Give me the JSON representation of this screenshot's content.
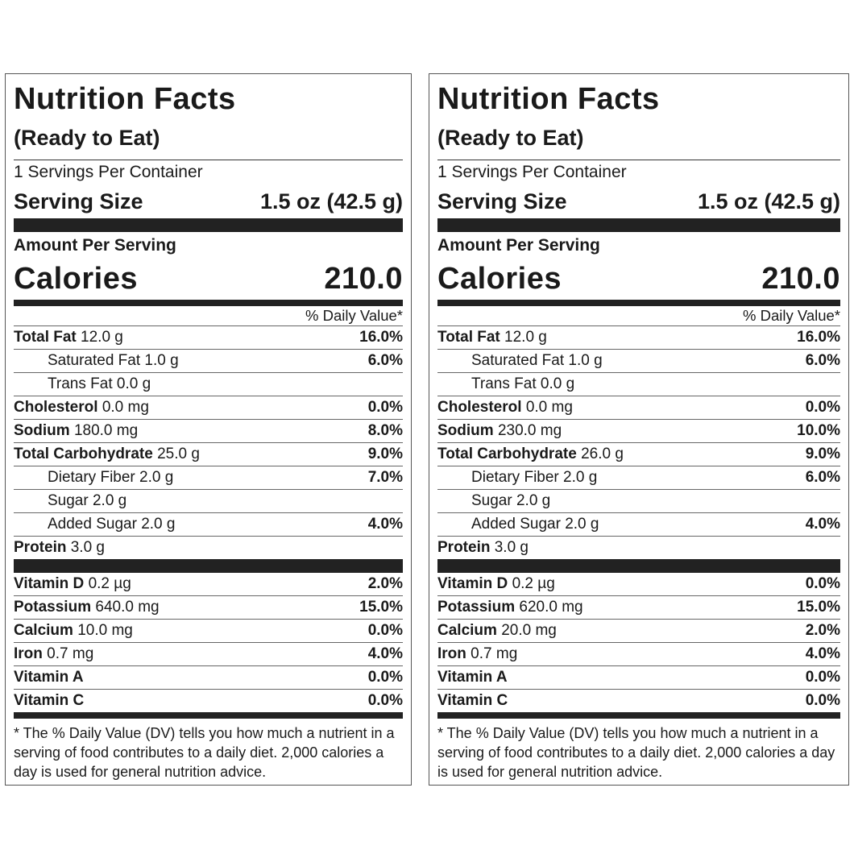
{
  "labels": [
    {
      "title": "Nutrition Facts",
      "subtitle": "(Ready to Eat)",
      "servings_per_container": "1 Servings Per Container",
      "serving_size_label": "Serving Size",
      "serving_size_value": "1.5 oz (42.5 g)",
      "amount_per_serving": "Amount Per Serving",
      "calories_label": "Calories",
      "calories_value": "210.0",
      "daily_value_header": "% Daily Value*",
      "nutrients": [
        {
          "name": "Total Fat",
          "amount": "12.0 g",
          "dv": "16.0%"
        },
        {
          "name": "Saturated Fat",
          "amount": "1.0 g",
          "dv": "6.0%"
        },
        {
          "name": "Trans Fat",
          "amount": "0.0 g",
          "dv": ""
        },
        {
          "name": "Cholesterol",
          "amount": "0.0 mg",
          "dv": "0.0%"
        },
        {
          "name": "Sodium",
          "amount": "180.0 mg",
          "dv": "8.0%"
        },
        {
          "name": "Total Carbohydrate",
          "amount": "25.0 g",
          "dv": "9.0%"
        },
        {
          "name": "Dietary Fiber",
          "amount": "2.0 g",
          "dv": "7.0%"
        },
        {
          "name": "Sugar",
          "amount": "2.0 g",
          "dv": ""
        },
        {
          "name": "Added Sugar",
          "amount": "2.0 g",
          "dv": "4.0%"
        }
      ],
      "protein": {
        "name": "Protein",
        "amount": "3.0 g"
      },
      "vitamins": [
        {
          "name": "Vitamin D",
          "amount": "0.2 µg",
          "dv": "2.0%"
        },
        {
          "name": "Potassium",
          "amount": "640.0 mg",
          "dv": "15.0%"
        },
        {
          "name": "Calcium",
          "amount": "10.0 mg",
          "dv": "0.0%"
        },
        {
          "name": "Iron",
          "amount": "0.7 mg",
          "dv": "4.0%"
        },
        {
          "name": "Vitamin A",
          "amount": "",
          "dv": "0.0%"
        },
        {
          "name": "Vitamin C",
          "amount": "",
          "dv": "0.0%"
        }
      ],
      "footnote": "* The % Daily Value (DV) tells you how much a nutrient in a serving of food contributes to a daily diet. 2,000 calories a day is used for general nutrition advice."
    },
    {
      "title": "Nutrition Facts",
      "subtitle": "(Ready to Eat)",
      "servings_per_container": "1 Servings Per Container",
      "serving_size_label": "Serving Size",
      "serving_size_value": "1.5 oz (42.5 g)",
      "amount_per_serving": "Amount Per Serving",
      "calories_label": "Calories",
      "calories_value": "210.0",
      "daily_value_header": "% Daily Value*",
      "nutrients": [
        {
          "name": "Total Fat",
          "amount": "12.0 g",
          "dv": "16.0%"
        },
        {
          "name": "Saturated Fat",
          "amount": "1.0 g",
          "dv": "6.0%"
        },
        {
          "name": "Trans Fat",
          "amount": "0.0 g",
          "dv": ""
        },
        {
          "name": "Cholesterol",
          "amount": "0.0 mg",
          "dv": "0.0%"
        },
        {
          "name": "Sodium",
          "amount": "230.0 mg",
          "dv": "10.0%"
        },
        {
          "name": "Total Carbohydrate",
          "amount": "26.0 g",
          "dv": "9.0%"
        },
        {
          "name": "Dietary Fiber",
          "amount": "2.0 g",
          "dv": "6.0%"
        },
        {
          "name": "Sugar",
          "amount": "2.0 g",
          "dv": ""
        },
        {
          "name": "Added Sugar",
          "amount": "2.0 g",
          "dv": "4.0%"
        }
      ],
      "protein": {
        "name": "Protein",
        "amount": "3.0 g"
      },
      "vitamins": [
        {
          "name": "Vitamin D",
          "amount": "0.2 µg",
          "dv": "0.0%"
        },
        {
          "name": "Potassium",
          "amount": "620.0 mg",
          "dv": "15.0%"
        },
        {
          "name": "Calcium",
          "amount": "20.0 mg",
          "dv": "2.0%"
        },
        {
          "name": "Iron",
          "amount": "0.7 mg",
          "dv": "4.0%"
        },
        {
          "name": "Vitamin A",
          "amount": "",
          "dv": "0.0%"
        },
        {
          "name": "Vitamin C",
          "amount": "",
          "dv": "0.0%"
        }
      ],
      "footnote": "* The % Daily Value (DV) tells you how much a nutrient in a serving of food contributes to a daily diet. 2,000 calories a day is used for general nutrition advice."
    }
  ]
}
